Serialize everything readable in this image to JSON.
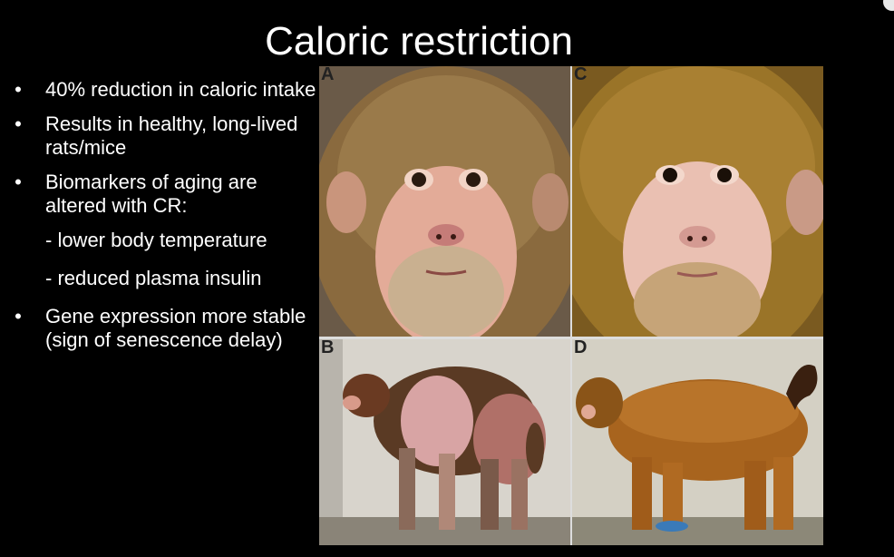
{
  "slide": {
    "title": "Caloric restriction",
    "bullets": [
      {
        "marker": "•",
        "text": "40% reduction in caloric intake"
      },
      {
        "marker": "•",
        "text": "Results in healthy, long-lived rats/mice"
      },
      {
        "marker": "•",
        "text": "Biomarkers of aging are altered with CR:"
      }
    ],
    "sub_bullets": [
      "- lower body temperature",
      "- reduced plasma insulin"
    ],
    "last_bullet": {
      "marker": "•",
      "text": "Gene expression more stable (sign of senescence delay)"
    }
  },
  "figure": {
    "panels": [
      {
        "label": "A",
        "subject": "monkey-face-control"
      },
      {
        "label": "C",
        "subject": "monkey-face-cr"
      },
      {
        "label": "B",
        "subject": "monkey-body-control"
      },
      {
        "label": "D",
        "subject": "monkey-body-cr"
      }
    ],
    "colors": {
      "fur_A": "#8a6a3e",
      "fur_C": "#9a7428",
      "fur_B": "#5a3a24",
      "fur_D": "#a8641e",
      "face": "#e8b4a4",
      "background_wall": "#d8d4cc"
    }
  }
}
